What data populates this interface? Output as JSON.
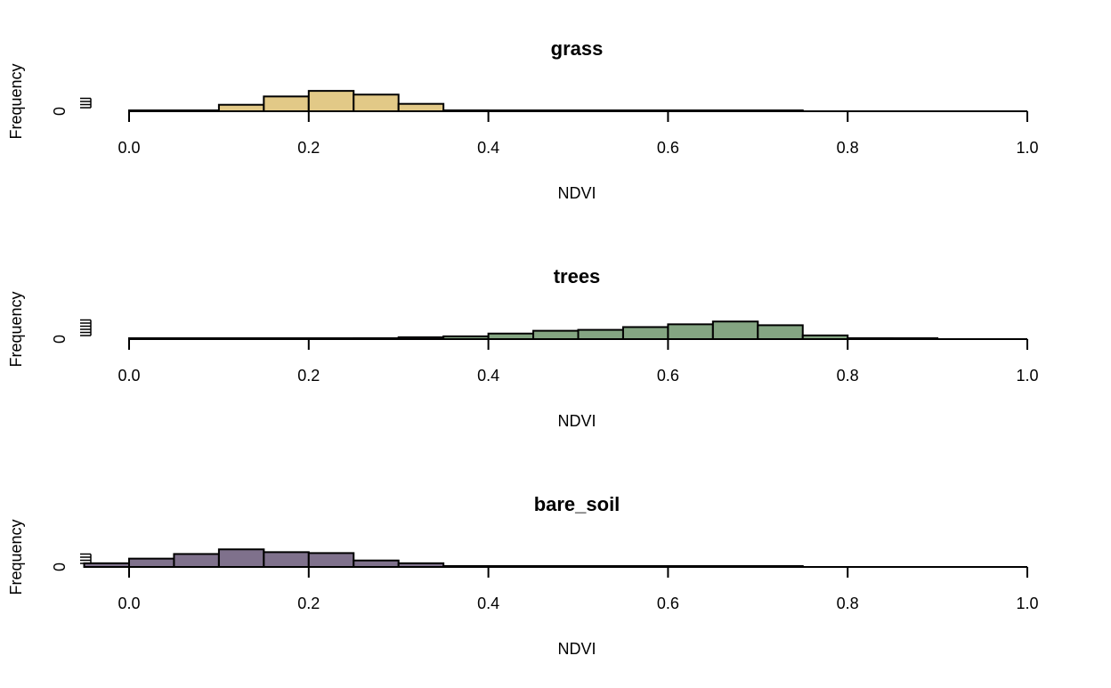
{
  "chart_data": [
    {
      "type": "bar",
      "title": "grass",
      "xlabel": "NDVI",
      "ylabel": "Frequency",
      "y_tick_labels": [
        "0"
      ],
      "x_ticks": [
        "0.0",
        "0.2",
        "0.4",
        "0.6",
        "0.8",
        "1.0"
      ],
      "xlim": [
        0,
        1
      ],
      "ylim": [
        0,
        25
      ],
      "bar_color": "#E2C987",
      "bins": [
        {
          "x0": 0.0,
          "x1": 0.05,
          "value": 0
        },
        {
          "x0": 0.05,
          "x1": 0.1,
          "value": 0
        },
        {
          "x0": 0.1,
          "x1": 0.15,
          "value": 7
        },
        {
          "x0": 0.15,
          "x1": 0.2,
          "value": 16
        },
        {
          "x0": 0.2,
          "x1": 0.25,
          "value": 22
        },
        {
          "x0": 0.25,
          "x1": 0.3,
          "value": 18
        },
        {
          "x0": 0.3,
          "x1": 0.35,
          "value": 8
        },
        {
          "x0": 0.35,
          "x1": 0.4,
          "value": 1
        },
        {
          "x0": 0.4,
          "x1": 0.45,
          "value": 0.5
        },
        {
          "x0": 0.45,
          "x1": 0.5,
          "value": 0.5
        },
        {
          "x0": 0.5,
          "x1": 0.55,
          "value": 0.3
        },
        {
          "x0": 0.55,
          "x1": 0.6,
          "value": 0.3
        },
        {
          "x0": 0.6,
          "x1": 0.65,
          "value": 0.3
        },
        {
          "x0": 0.65,
          "x1": 0.7,
          "value": 0.3
        },
        {
          "x0": 0.7,
          "x1": 0.75,
          "value": 0.3
        }
      ]
    },
    {
      "type": "bar",
      "title": "trees",
      "xlabel": "NDVI",
      "ylabel": "Frequency",
      "y_tick_labels": [
        "0"
      ],
      "x_ticks": [
        "0.0",
        "0.2",
        "0.4",
        "0.6",
        "0.8",
        "1.0"
      ],
      "xlim": [
        0,
        1
      ],
      "ylim": [
        0,
        25
      ],
      "bar_color": "#84A582",
      "bins": [
        {
          "x0": 0.0,
          "x1": 0.05,
          "value": 0.2
        },
        {
          "x0": 0.05,
          "x1": 0.1,
          "value": 0.2
        },
        {
          "x0": 0.1,
          "x1": 0.15,
          "value": 0.3
        },
        {
          "x0": 0.15,
          "x1": 0.2,
          "value": 0.3
        },
        {
          "x0": 0.2,
          "x1": 0.25,
          "value": 0.3
        },
        {
          "x0": 0.25,
          "x1": 0.3,
          "value": 1
        },
        {
          "x0": 0.3,
          "x1": 0.35,
          "value": 2
        },
        {
          "x0": 0.35,
          "x1": 0.4,
          "value": 3
        },
        {
          "x0": 0.4,
          "x1": 0.45,
          "value": 6
        },
        {
          "x0": 0.45,
          "x1": 0.5,
          "value": 9
        },
        {
          "x0": 0.5,
          "x1": 0.55,
          "value": 10
        },
        {
          "x0": 0.55,
          "x1": 0.6,
          "value": 13
        },
        {
          "x0": 0.6,
          "x1": 0.65,
          "value": 16
        },
        {
          "x0": 0.65,
          "x1": 0.7,
          "value": 19
        },
        {
          "x0": 0.7,
          "x1": 0.75,
          "value": 15
        },
        {
          "x0": 0.75,
          "x1": 0.8,
          "value": 4
        },
        {
          "x0": 0.8,
          "x1": 0.85,
          "value": 1
        },
        {
          "x0": 0.85,
          "x1": 0.9,
          "value": 0.5
        }
      ]
    },
    {
      "type": "bar",
      "title": "bare_soil",
      "xlabel": "NDVI",
      "ylabel": "Frequency",
      "y_tick_labels": [
        "0"
      ],
      "x_ticks": [
        "0.0",
        "0.2",
        "0.4",
        "0.6",
        "0.8",
        "1.0"
      ],
      "xlim": [
        0,
        1
      ],
      "ylim": [
        0,
        25
      ],
      "bar_color": "#7F718C",
      "bins": [
        {
          "x0": -0.05,
          "x1": 0.0,
          "value": 4
        },
        {
          "x0": 0.0,
          "x1": 0.05,
          "value": 9
        },
        {
          "x0": 0.05,
          "x1": 0.1,
          "value": 14
        },
        {
          "x0": 0.1,
          "x1": 0.15,
          "value": 19
        },
        {
          "x0": 0.15,
          "x1": 0.2,
          "value": 16
        },
        {
          "x0": 0.2,
          "x1": 0.25,
          "value": 15
        },
        {
          "x0": 0.25,
          "x1": 0.3,
          "value": 7
        },
        {
          "x0": 0.3,
          "x1": 0.35,
          "value": 4
        },
        {
          "x0": 0.35,
          "x1": 0.4,
          "value": 1
        },
        {
          "x0": 0.4,
          "x1": 0.45,
          "value": 0.5
        },
        {
          "x0": 0.45,
          "x1": 0.5,
          "value": 0.5
        },
        {
          "x0": 0.5,
          "x1": 0.55,
          "value": 0.3
        },
        {
          "x0": 0.55,
          "x1": 0.6,
          "value": 0.5
        },
        {
          "x0": 0.6,
          "x1": 0.65,
          "value": 0.3
        },
        {
          "x0": 0.65,
          "x1": 0.7,
          "value": 0.3
        },
        {
          "x0": 0.7,
          "x1": 0.75,
          "value": 0.3
        }
      ]
    }
  ]
}
